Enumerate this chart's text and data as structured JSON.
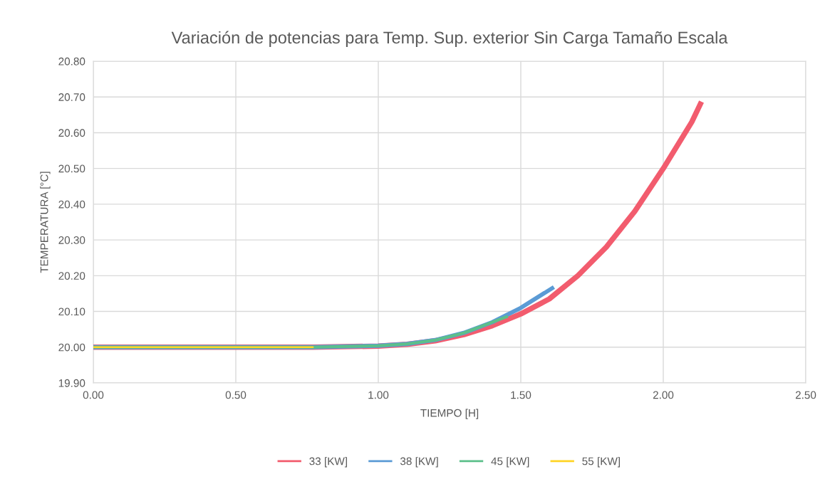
{
  "chart_data": {
    "type": "line",
    "title": "Variación de potencias para Temp. Sup. exterior Sin Carga Tamaño Escala",
    "xlabel": "TIEMPO [H]",
    "ylabel": "TEMPERATURA [°C]",
    "xlim": [
      0,
      2.5
    ],
    "xticks": [
      {
        "value": 0,
        "label": "0.00"
      },
      {
        "value": 0.5,
        "label": "0.50"
      },
      {
        "value": 1,
        "label": "1.00"
      },
      {
        "value": 1.5,
        "label": "1.50"
      },
      {
        "value": 2,
        "label": "2.00"
      },
      {
        "value": 2.5,
        "label": "2.50"
      }
    ],
    "ylim": [
      19.9,
      20.8
    ],
    "yticks": [
      {
        "value": 19.9,
        "label": "19.90"
      },
      {
        "value": 20.0,
        "label": "20.00"
      },
      {
        "value": 20.1,
        "label": "20.10"
      },
      {
        "value": 20.2,
        "label": "20.20"
      },
      {
        "value": 20.3,
        "label": "20.30"
      },
      {
        "value": 20.4,
        "label": "20.40"
      },
      {
        "value": 20.5,
        "label": "20.50"
      },
      {
        "value": 20.6,
        "label": "20.60"
      },
      {
        "value": 20.7,
        "label": "20.70"
      },
      {
        "value": 20.8,
        "label": "20.80"
      }
    ],
    "grid": true,
    "legend": "bottom",
    "marker": "none",
    "line_style": "solid",
    "series": [
      {
        "name": "33 [KW]",
        "color": "#f25c6e",
        "x": [
          0,
          0.77,
          1.0,
          1.1,
          1.2,
          1.3,
          1.4,
          1.5,
          1.6,
          1.7,
          1.8,
          1.9,
          2.0,
          2.1,
          2.13
        ],
        "values": [
          20.0,
          20.0,
          20.003,
          20.008,
          20.018,
          20.035,
          20.06,
          20.093,
          20.135,
          20.2,
          20.28,
          20.38,
          20.5,
          20.63,
          20.68
        ]
      },
      {
        "name": "38 [KW]",
        "color": "#5b9bd5",
        "x": [
          0,
          0.77,
          1.0,
          1.1,
          1.2,
          1.3,
          1.4,
          1.5,
          1.61
        ],
        "values": [
          20.0,
          20.0,
          20.004,
          20.009,
          20.02,
          20.04,
          20.07,
          20.11,
          20.165
        ]
      },
      {
        "name": "45 [KW]",
        "color": "#5cbf8a",
        "x": [
          0,
          0.77,
          1.0,
          1.1,
          1.2,
          1.3,
          1.45
        ],
        "values": [
          20.0,
          20.0,
          20.004,
          20.009,
          20.02,
          20.04,
          20.085
        ]
      },
      {
        "name": "55 [KW]",
        "color": "#ffd426",
        "x": [
          0,
          0.77
        ],
        "values": [
          20.0,
          20.0
        ]
      }
    ]
  }
}
